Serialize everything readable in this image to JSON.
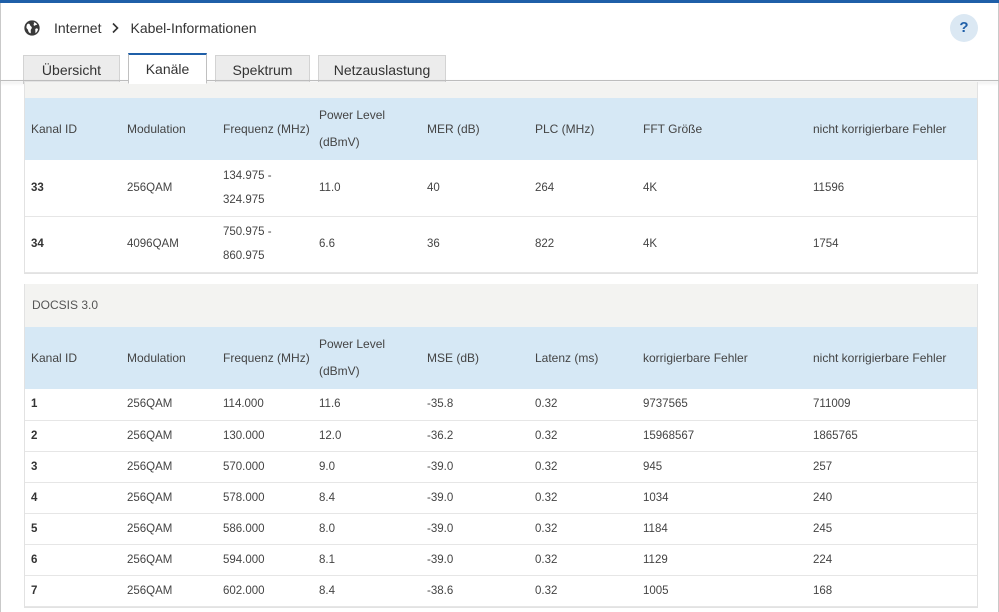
{
  "breadcrumb": {
    "root": "Internet",
    "current": "Kabel-Informationen"
  },
  "help_label": "?",
  "tabs": [
    {
      "label": "Übersicht",
      "active": false
    },
    {
      "label": "Kanäle",
      "active": true
    },
    {
      "label": "Spektrum",
      "active": false
    },
    {
      "label": "Netzauslastung",
      "active": false
    }
  ],
  "docsis31": {
    "title": "",
    "columns": [
      "Kanal ID",
      "Modulation",
      "Frequenz (MHz)",
      "Power Level (dBmV)",
      "MER (dB)",
      "PLC (MHz)",
      "FFT Größe",
      "nicht korrigierbare Fehler"
    ],
    "rows": [
      [
        "33",
        "256QAM",
        "134.975 - 324.975",
        "11.0",
        "40",
        "264",
        "4K",
        "11596"
      ],
      [
        "34",
        "4096QAM",
        "750.975 - 860.975",
        "6.6",
        "36",
        "822",
        "4K",
        "1754"
      ]
    ]
  },
  "docsis30": {
    "title": "DOCSIS 3.0",
    "columns": [
      "Kanal ID",
      "Modulation",
      "Frequenz (MHz)",
      "Power Level (dBmV)",
      "MSE (dB)",
      "Latenz (ms)",
      "korrigierbare Fehler",
      "nicht korrigierbare Fehler"
    ],
    "rows": [
      [
        "1",
        "256QAM",
        "114.000",
        "11.6",
        "-35.8",
        "0.32",
        "9737565",
        "711009"
      ],
      [
        "2",
        "256QAM",
        "130.000",
        "12.0",
        "-36.2",
        "0.32",
        "15968567",
        "1865765"
      ],
      [
        "3",
        "256QAM",
        "570.000",
        "9.0",
        "-39.0",
        "0.32",
        "945",
        "257"
      ],
      [
        "4",
        "256QAM",
        "578.000",
        "8.4",
        "-39.0",
        "0.32",
        "1034",
        "240"
      ],
      [
        "5",
        "256QAM",
        "586.000",
        "8.0",
        "-39.0",
        "0.32",
        "1184",
        "245"
      ],
      [
        "6",
        "256QAM",
        "594.000",
        "8.1",
        "-39.0",
        "0.32",
        "1129",
        "224"
      ],
      [
        "7",
        "256QAM",
        "602.000",
        "8.4",
        "-38.6",
        "0.32",
        "1005",
        "168"
      ]
    ]
  },
  "colors": {
    "accent": "#1f5fa8",
    "header_row": "#d6e8f5",
    "section_bg": "#f3f3f1"
  },
  "icons": {
    "globe": "globe-icon",
    "chevron": "chevron-right-icon",
    "help": "help-icon"
  }
}
